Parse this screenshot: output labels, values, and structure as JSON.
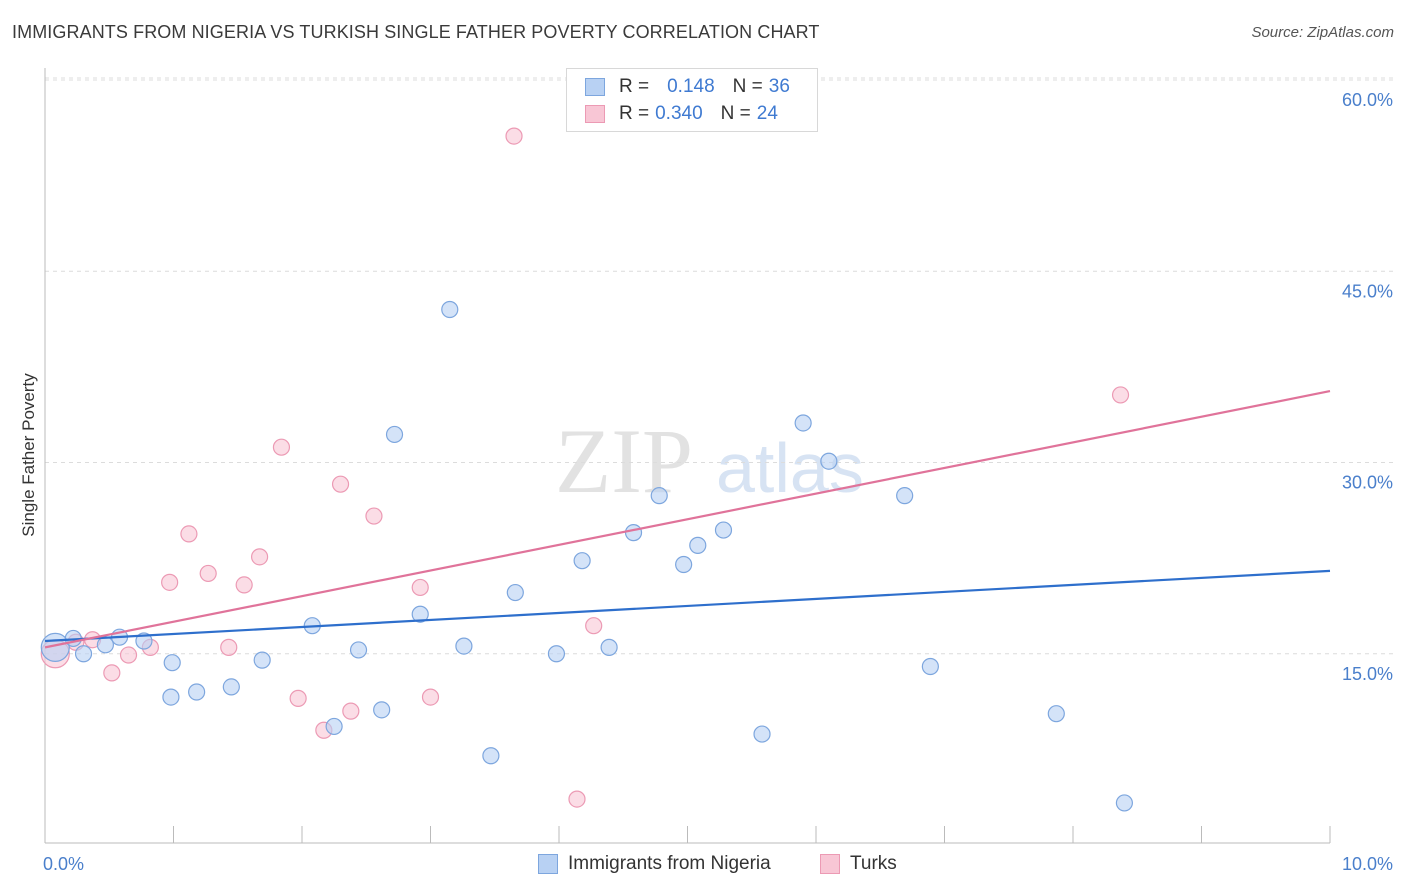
{
  "header": {
    "title": "IMMIGRANTS FROM NIGERIA VS TURKISH SINGLE FATHER POVERTY CORRELATION CHART",
    "source": "Source: ZipAtlas.com"
  },
  "watermark": {
    "zip": "ZIP",
    "atlas": "atlas"
  },
  "legend": {
    "rows": [
      {
        "r_label": "R =",
        "r_value": "0.148",
        "n_label": "N =",
        "n_value": "36"
      },
      {
        "r_label": "R =",
        "r_value": "0.340",
        "n_label": "N =",
        "n_value": "24"
      }
    ]
  },
  "colors": {
    "nigeria_fill": "#b8d1f3",
    "nigeria_stroke": "#7da6de",
    "nigeria_line": "#2e6fcc",
    "turks_fill": "#f8c6d5",
    "turks_stroke": "#ec9ab4",
    "turks_line": "#e0739a",
    "tick": "#4a7fcb",
    "grid": "#dcdcdc"
  },
  "chart_data": {
    "type": "scatter",
    "title": "IMMIGRANTS FROM NIGERIA VS TURKISH SINGLE FATHER POVERTY CORRELATION CHART",
    "xlabel": "",
    "ylabel": "Single Father Poverty",
    "xlim": [
      0,
      10
    ],
    "ylim": [
      0,
      60
    ],
    "x_tick_labels": [
      "0.0%",
      "10.0%"
    ],
    "y_ticks": [
      15,
      30,
      45,
      60
    ],
    "y_tick_labels": [
      "15.0%",
      "30.0%",
      "45.0%",
      "60.0%"
    ],
    "grid": true,
    "legend_position": "top-center",
    "series": [
      {
        "name": "Immigrants from Nigeria",
        "R": 0.148,
        "N": 36,
        "trend": {
          "x": [
            0,
            10
          ],
          "y": [
            16.0,
            21.5
          ]
        },
        "points": [
          {
            "x": 0.08,
            "y": 15.5,
            "big": true
          },
          {
            "x": 0.22,
            "y": 16.2
          },
          {
            "x": 0.3,
            "y": 15.0
          },
          {
            "x": 0.47,
            "y": 15.7
          },
          {
            "x": 0.58,
            "y": 16.3
          },
          {
            "x": 0.99,
            "y": 14.3
          },
          {
            "x": 0.77,
            "y": 16.0
          },
          {
            "x": 0.98,
            "y": 11.6
          },
          {
            "x": 1.69,
            "y": 14.5
          },
          {
            "x": 1.18,
            "y": 12.0
          },
          {
            "x": 1.45,
            "y": 12.4
          },
          {
            "x": 2.08,
            "y": 17.2
          },
          {
            "x": 2.25,
            "y": 9.3
          },
          {
            "x": 2.44,
            "y": 15.3
          },
          {
            "x": 2.62,
            "y": 10.6
          },
          {
            "x": 2.72,
            "y": 32.2
          },
          {
            "x": 2.92,
            "y": 18.1
          },
          {
            "x": 3.15,
            "y": 42.0
          },
          {
            "x": 3.26,
            "y": 15.6
          },
          {
            "x": 3.47,
            "y": 7.0
          },
          {
            "x": 3.66,
            "y": 19.8
          },
          {
            "x": 3.98,
            "y": 15.0
          },
          {
            "x": 4.18,
            "y": 22.3
          },
          {
            "x": 4.39,
            "y": 15.5
          },
          {
            "x": 4.58,
            "y": 24.5
          },
          {
            "x": 4.78,
            "y": 27.4
          },
          {
            "x": 4.97,
            "y": 22.0
          },
          {
            "x": 5.08,
            "y": 23.5
          },
          {
            "x": 5.28,
            "y": 24.7
          },
          {
            "x": 5.58,
            "y": 8.7
          },
          {
            "x": 5.9,
            "y": 33.1
          },
          {
            "x": 6.1,
            "y": 30.1
          },
          {
            "x": 6.69,
            "y": 27.4
          },
          {
            "x": 6.89,
            "y": 14.0
          },
          {
            "x": 7.87,
            "y": 10.3
          },
          {
            "x": 8.4,
            "y": 3.3
          }
        ]
      },
      {
        "name": "Turks",
        "R": 0.34,
        "N": 24,
        "trend": {
          "x": [
            0,
            10
          ],
          "y": [
            15.5,
            35.6
          ]
        },
        "points": [
          {
            "x": 0.08,
            "y": 15.0,
            "big": true
          },
          {
            "x": 0.24,
            "y": 15.9
          },
          {
            "x": 0.37,
            "y": 16.1
          },
          {
            "x": 0.52,
            "y": 13.5
          },
          {
            "x": 0.65,
            "y": 14.9
          },
          {
            "x": 0.82,
            "y": 15.5
          },
          {
            "x": 0.97,
            "y": 20.6
          },
          {
            "x": 1.12,
            "y": 24.4
          },
          {
            "x": 1.27,
            "y": 21.3
          },
          {
            "x": 1.43,
            "y": 15.5
          },
          {
            "x": 1.55,
            "y": 20.4
          },
          {
            "x": 1.67,
            "y": 22.6
          },
          {
            "x": 1.84,
            "y": 31.2
          },
          {
            "x": 1.97,
            "y": 11.5
          },
          {
            "x": 2.17,
            "y": 9.0
          },
          {
            "x": 2.3,
            "y": 28.3
          },
          {
            "x": 2.38,
            "y": 10.5
          },
          {
            "x": 2.56,
            "y": 25.8
          },
          {
            "x": 2.92,
            "y": 20.2
          },
          {
            "x": 3.0,
            "y": 11.6
          },
          {
            "x": 3.65,
            "y": 55.6
          },
          {
            "x": 4.14,
            "y": 3.6
          },
          {
            "x": 4.27,
            "y": 17.2
          },
          {
            "x": 8.37,
            "y": 35.3
          }
        ]
      }
    ]
  }
}
